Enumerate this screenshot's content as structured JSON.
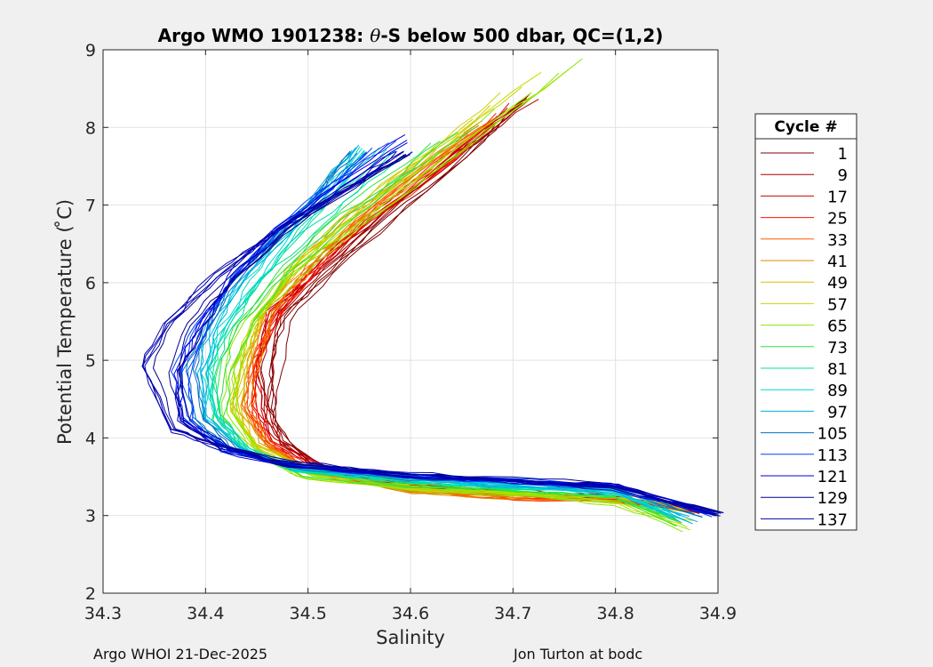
{
  "chart_data": {
    "type": "line",
    "title": "Argo WMO 1901238: θ-S below 500 dbar,  QC=(1,2)",
    "title_parts": {
      "prefix": "Argo WMO 1901238: ",
      "symbol": "θ",
      "suffix": "-S below 500 dbar,  QC=(1,2)"
    },
    "xlabel": "Salinity",
    "ylabel": "Potential Temperature ( ̊C)",
    "xlim": [
      34.3,
      34.9
    ],
    "ylim": [
      2,
      9
    ],
    "xticks": [
      "34.3",
      "34.4",
      "34.5",
      "34.6",
      "34.7",
      "34.8",
      "34.9"
    ],
    "yticks": [
      "2",
      "3",
      "4",
      "5",
      "6",
      "7",
      "8",
      "9"
    ],
    "grid": true,
    "legend": {
      "title": "Cycle #",
      "placement": "right-outside",
      "entries": [
        {
          "label": "1",
          "color": "#800000"
        },
        {
          "label": "9",
          "color": "#a00000"
        },
        {
          "label": "17",
          "color": "#d00000"
        },
        {
          "label": "25",
          "color": "#ff1500"
        },
        {
          "label": "33",
          "color": "#ff5a00"
        },
        {
          "label": "41",
          "color": "#e08a00"
        },
        {
          "label": "49",
          "color": "#d8c000"
        },
        {
          "label": "57",
          "color": "#c8d800"
        },
        {
          "label": "65",
          "color": "#8fe600"
        },
        {
          "label": "73",
          "color": "#30e040"
        },
        {
          "label": "81",
          "color": "#00e0a0"
        },
        {
          "label": "89",
          "color": "#00d8d0"
        },
        {
          "label": "97",
          "color": "#00b0e0"
        },
        {
          "label": "105",
          "color": "#0070c0"
        },
        {
          "label": "113",
          "color": "#0040ff"
        },
        {
          "label": "121",
          "color": "#0000e0"
        },
        {
          "label": "129",
          "color": "#000090"
        },
        {
          "label": "137",
          "color": "#0000b0"
        }
      ]
    },
    "series_template": {
      "S": [
        34.88,
        34.8,
        34.7,
        34.6,
        34.5,
        34.45,
        34.43,
        34.44,
        34.46,
        34.5,
        34.55,
        34.62,
        34.7
      ],
      "T": [
        3.05,
        3.25,
        3.33,
        3.42,
        3.62,
        3.9,
        4.3,
        4.9,
        5.5,
        6.1,
        6.7,
        7.4,
        8.2
      ]
    },
    "series": [
      {
        "name": "1",
        "color": "#800000",
        "S": [
          34.88,
          34.8,
          34.7,
          34.6,
          34.51,
          34.48,
          34.47,
          34.47,
          34.48,
          34.52,
          34.58,
          34.65,
          34.71
        ],
        "T": [
          3.05,
          3.25,
          3.3,
          3.4,
          3.62,
          3.92,
          4.3,
          4.9,
          5.5,
          6.1,
          6.8,
          7.6,
          8.4
        ]
      },
      {
        "name": "9",
        "color": "#a00000",
        "S": [
          34.88,
          34.8,
          34.7,
          34.6,
          34.51,
          34.47,
          34.46,
          34.46,
          34.47,
          34.52,
          34.58,
          34.65,
          34.72
        ],
        "T": [
          3.05,
          3.22,
          3.28,
          3.38,
          3.62,
          3.95,
          4.4,
          5.0,
          5.6,
          6.2,
          6.9,
          7.7,
          8.4
        ]
      },
      {
        "name": "17",
        "color": "#d00000",
        "S": [
          34.88,
          34.8,
          34.7,
          34.6,
          34.51,
          34.47,
          34.45,
          34.45,
          34.46,
          34.51,
          34.57,
          34.64,
          34.7
        ],
        "T": [
          3.08,
          3.25,
          3.32,
          3.4,
          3.65,
          3.95,
          4.4,
          5.0,
          5.6,
          6.2,
          6.9,
          7.6,
          8.3
        ]
      },
      {
        "name": "25",
        "color": "#ff1500",
        "S": [
          34.88,
          34.8,
          34.7,
          34.6,
          34.5,
          34.46,
          34.45,
          34.45,
          34.47,
          34.51,
          34.56,
          34.63,
          34.69
        ],
        "T": [
          3.06,
          3.2,
          3.25,
          3.36,
          3.62,
          3.95,
          4.4,
          5.0,
          5.6,
          6.2,
          6.8,
          7.5,
          8.2
        ]
      },
      {
        "name": "33",
        "color": "#ff5a00",
        "S": [
          34.87,
          34.8,
          34.7,
          34.6,
          34.5,
          34.46,
          34.44,
          34.45,
          34.47,
          34.5,
          34.55,
          34.62,
          34.68
        ],
        "T": [
          3.1,
          3.18,
          3.22,
          3.34,
          3.6,
          3.95,
          4.4,
          5.0,
          5.6,
          6.2,
          6.8,
          7.5,
          8.1
        ]
      },
      {
        "name": "41",
        "color": "#e08a00",
        "S": [
          34.87,
          34.8,
          34.7,
          34.6,
          34.5,
          34.46,
          34.44,
          34.45,
          34.46,
          34.5,
          34.55,
          34.61,
          34.67
        ],
        "T": [
          3.12,
          3.2,
          3.22,
          3.3,
          3.58,
          3.92,
          4.4,
          5.0,
          5.6,
          6.2,
          6.8,
          7.4,
          8.0
        ]
      },
      {
        "name": "49",
        "color": "#d8c000",
        "S": [
          34.87,
          34.8,
          34.7,
          34.6,
          34.5,
          34.45,
          34.43,
          34.44,
          34.45,
          34.49,
          34.53,
          34.58,
          34.63
        ],
        "T": [
          3.1,
          3.22,
          3.28,
          3.36,
          3.58,
          3.92,
          4.4,
          5.0,
          5.6,
          6.2,
          6.7,
          7.2,
          7.7
        ]
      },
      {
        "name": "57",
        "color": "#c8d800",
        "S": [
          34.87,
          34.8,
          34.7,
          34.6,
          34.5,
          34.45,
          34.43,
          34.43,
          34.45,
          34.48,
          34.53,
          34.6,
          34.69
        ],
        "T": [
          3.1,
          3.22,
          3.28,
          3.36,
          3.55,
          3.9,
          4.35,
          4.95,
          5.55,
          6.15,
          6.8,
          7.6,
          8.45
        ]
      },
      {
        "name": "65",
        "color": "#8fe600",
        "S": [
          34.87,
          34.8,
          34.7,
          34.6,
          34.5,
          34.45,
          34.43,
          34.43,
          34.45,
          34.49,
          34.56,
          34.66,
          34.77
        ],
        "T": [
          2.82,
          3.15,
          3.27,
          3.36,
          3.5,
          3.85,
          4.3,
          4.9,
          5.5,
          6.1,
          6.8,
          7.8,
          8.9
        ]
      },
      {
        "name": "73",
        "color": "#30e040",
        "S": [
          34.86,
          34.8,
          34.7,
          34.6,
          34.49,
          34.44,
          34.42,
          34.42,
          34.44,
          34.48,
          34.53,
          34.6,
          34.66
        ],
        "T": [
          2.9,
          3.2,
          3.3,
          3.38,
          3.52,
          3.85,
          4.3,
          4.9,
          5.5,
          6.1,
          6.7,
          7.4,
          8.0
        ]
      },
      {
        "name": "81",
        "color": "#00e0a0",
        "S": [
          34.86,
          34.8,
          34.7,
          34.6,
          34.49,
          34.44,
          34.41,
          34.41,
          34.43,
          34.46,
          34.5,
          34.55,
          34.6
        ],
        "T": [
          3.0,
          3.28,
          3.36,
          3.42,
          3.58,
          3.85,
          4.25,
          4.85,
          5.45,
          6.05,
          6.65,
          7.2,
          7.7
        ]
      },
      {
        "name": "89",
        "color": "#00d8d0",
        "S": [
          34.86,
          34.8,
          34.7,
          34.6,
          34.49,
          34.44,
          34.41,
          34.4,
          34.42,
          34.45,
          34.49,
          34.53,
          34.56
        ],
        "T": [
          3.0,
          3.3,
          3.38,
          3.44,
          3.6,
          3.85,
          4.25,
          4.85,
          5.45,
          6.05,
          6.65,
          7.2,
          7.7
        ]
      },
      {
        "name": "97",
        "color": "#00b0e0",
        "S": [
          34.87,
          34.8,
          34.7,
          34.6,
          34.49,
          34.44,
          34.4,
          34.4,
          34.41,
          34.44,
          34.48,
          34.52,
          34.55
        ],
        "T": [
          2.9,
          3.3,
          3.38,
          3.46,
          3.62,
          3.85,
          4.25,
          4.85,
          5.45,
          6.05,
          6.65,
          7.25,
          7.75
        ]
      },
      {
        "name": "105",
        "color": "#0070c0",
        "S": [
          34.88,
          34.8,
          34.7,
          34.6,
          34.48,
          34.43,
          34.4,
          34.39,
          34.4,
          34.43,
          34.47,
          34.51,
          34.54
        ],
        "T": [
          3.0,
          3.33,
          3.42,
          3.48,
          3.64,
          3.85,
          4.25,
          4.85,
          5.45,
          6.05,
          6.65,
          7.2,
          7.7
        ]
      },
      {
        "name": "113",
        "color": "#0040ff",
        "S": [
          34.89,
          34.8,
          34.7,
          34.6,
          34.48,
          34.42,
          34.39,
          34.38,
          34.4,
          34.43,
          34.47,
          34.52,
          34.56
        ],
        "T": [
          3.02,
          3.36,
          3.44,
          3.5,
          3.66,
          3.85,
          4.25,
          4.85,
          5.45,
          6.05,
          6.65,
          7.2,
          7.7
        ]
      },
      {
        "name": "121",
        "color": "#0000e0",
        "S": [
          34.9,
          34.8,
          34.7,
          34.6,
          34.48,
          34.42,
          34.38,
          34.37,
          34.39,
          34.42,
          34.47,
          34.53,
          34.59
        ],
        "T": [
          3.0,
          3.36,
          3.44,
          3.5,
          3.66,
          3.85,
          4.25,
          4.85,
          5.45,
          6.05,
          6.7,
          7.3,
          7.9
        ]
      },
      {
        "name": "129",
        "color": "#000090",
        "S": [
          34.9,
          34.8,
          34.7,
          34.6,
          34.48,
          34.42,
          34.38,
          34.38,
          34.4,
          34.43,
          34.48,
          34.54,
          34.6
        ],
        "T": [
          3.05,
          3.38,
          3.46,
          3.52,
          3.68,
          3.85,
          4.25,
          4.85,
          5.45,
          6.05,
          6.65,
          7.2,
          7.65
        ]
      },
      {
        "name": "137",
        "color": "#0000b0",
        "S": [
          34.9,
          34.8,
          34.7,
          34.6,
          34.48,
          34.42,
          34.37,
          34.34,
          34.36,
          34.41,
          34.47,
          34.54,
          34.59
        ],
        "T": [
          3.0,
          3.38,
          3.46,
          3.52,
          3.66,
          3.85,
          4.1,
          4.9,
          5.5,
          6.1,
          6.7,
          7.25,
          7.7
        ]
      }
    ]
  },
  "footer": {
    "left": "Argo WHOI 21-Dec-2025",
    "right": "Jon Turton at bodc"
  }
}
